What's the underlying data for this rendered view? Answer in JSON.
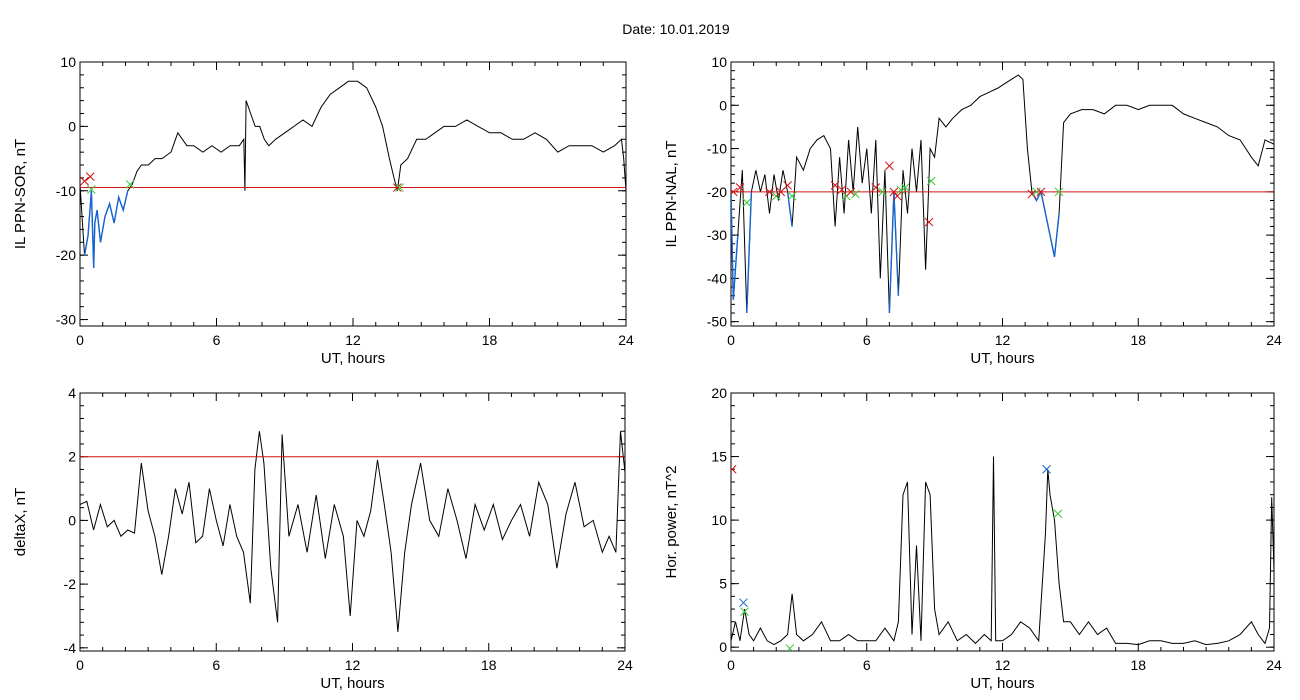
{
  "title": "Date:  10.01.2019",
  "colors": {
    "series": "#000000",
    "highlight": "#1464d2",
    "threshold": "#d21414",
    "marker_red": "#d21414",
    "marker_green": "#3cc83c",
    "marker_blue": "#1464d2"
  },
  "chart_data": [
    {
      "type": "line",
      "ylabel": "IL PPN-SOR, nT",
      "xlabel": "UT, hours",
      "xlim": [
        0,
        24
      ],
      "ylim": [
        -31,
        10
      ],
      "xticks": [
        0,
        6,
        12,
        18,
        24
      ],
      "yticks": [
        -30,
        -20,
        -10,
        0,
        10
      ],
      "grid": false,
      "threshold": -9.5,
      "series": [
        {
          "x": [
            0,
            0.2,
            0.35,
            0.5,
            0.6,
            0.65,
            0.75,
            0.9,
            1.1,
            1.3,
            1.5,
            1.7,
            1.9,
            2.1,
            2.3,
            2.5,
            2.7,
            3,
            3.3,
            3.6,
            4,
            4.3,
            4.7,
            5,
            5.4,
            5.8,
            6.2,
            6.6,
            7,
            7.2,
            7.25,
            7.3,
            7.5,
            7.7,
            7.9,
            8.1,
            8.3,
            8.6,
            9,
            9.4,
            9.8,
            10.2,
            10.6,
            11,
            11.4,
            11.8,
            12.2,
            12.6,
            13,
            13.3,
            13.6,
            13.8,
            13.95,
            14.1,
            14.4,
            14.8,
            15.2,
            15.6,
            16,
            16.5,
            17,
            17.5,
            18,
            18.5,
            19,
            19.5,
            20,
            20.5,
            21,
            21.5,
            22,
            22.5,
            23,
            23.5,
            23.8,
            23.9,
            24
          ],
          "y": [
            -9,
            -20,
            -17,
            -10,
            -22,
            -15,
            -13,
            -18,
            -14,
            -12,
            -15,
            -11,
            -13,
            -10,
            -9,
            -7,
            -6,
            -6,
            -5,
            -5,
            -4,
            -1,
            -3,
            -3,
            -4,
            -3,
            -4,
            -3,
            -3,
            -2,
            -10,
            4,
            2,
            0,
            0,
            -2,
            -3,
            -2,
            -1,
            0,
            1,
            0,
            3,
            5,
            6,
            7,
            7,
            6,
            3,
            0,
            -5,
            -8,
            -10,
            -6,
            -5,
            -2,
            -2,
            -1,
            0,
            0,
            1,
            0,
            -1,
            -1,
            -2,
            -2,
            -1,
            -2,
            -4,
            -3,
            -3,
            -3,
            -4,
            -3,
            -2,
            -5,
            -10
          ]
        }
      ],
      "markers": [
        {
          "x": 0.2,
          "y": -8.5,
          "color": "red"
        },
        {
          "x": 0.45,
          "y": -7.8,
          "color": "red"
        },
        {
          "x": 0.5,
          "y": -9.8,
          "color": "green"
        },
        {
          "x": 2.2,
          "y": -9,
          "color": "green"
        },
        {
          "x": 13.95,
          "y": -9.5,
          "color": "red"
        },
        {
          "x": 14.05,
          "y": -9.5,
          "color": "green"
        }
      ]
    },
    {
      "type": "line",
      "ylabel": "IL PPN-NAL, nT",
      "xlabel": "UT, hours",
      "xlim": [
        0,
        24
      ],
      "ylim": [
        -51,
        10
      ],
      "xticks": [
        0,
        6,
        12,
        18,
        24
      ],
      "yticks": [
        -50,
        -40,
        -30,
        -20,
        -10,
        0,
        10
      ],
      "grid": false,
      "threshold": -20,
      "series": [
        {
          "x": [
            0,
            0.1,
            0.3,
            0.5,
            0.7,
            0.9,
            1.1,
            1.3,
            1.5,
            1.7,
            1.9,
            2.1,
            2.3,
            2.5,
            2.7,
            2.9,
            3.2,
            3.5,
            3.8,
            4.1,
            4.4,
            4.6,
            4.8,
            5,
            5.2,
            5.4,
            5.6,
            5.8,
            6,
            6.2,
            6.4,
            6.6,
            6.8,
            7,
            7.2,
            7.4,
            7.6,
            7.8,
            8,
            8.2,
            8.4,
            8.6,
            8.8,
            9,
            9.2,
            9.5,
            9.8,
            10.2,
            10.6,
            11,
            11.4,
            11.8,
            12.1,
            12.4,
            12.7,
            12.9,
            13.1,
            13.3,
            13.5,
            13.7,
            13.9,
            14.1,
            14.3,
            14.5,
            14.7,
            15,
            15.5,
            16,
            16.5,
            17,
            17.5,
            18,
            18.5,
            19,
            19.5,
            20,
            20.5,
            21,
            21.5,
            22,
            22.5,
            23,
            23.3,
            23.6,
            24
          ],
          "y": [
            -20,
            -45,
            -30,
            -15,
            -48,
            -20,
            -15,
            -20,
            -16,
            -25,
            -16,
            -22,
            -15,
            -20,
            -28,
            -12,
            -15,
            -10,
            -8,
            -7,
            -10,
            -28,
            -12,
            -25,
            -8,
            -20,
            -5,
            -18,
            -10,
            -25,
            -8,
            -40,
            -15,
            -48,
            -20,
            -44,
            -15,
            -25,
            -10,
            -20,
            -8,
            -38,
            -10,
            -12,
            -3,
            -5,
            -3,
            -1,
            0,
            2,
            3,
            4,
            5,
            6,
            7,
            6,
            -10,
            -20,
            -22,
            -20,
            -25,
            -30,
            -35,
            -25,
            -4,
            -2,
            -1,
            -1,
            -2,
            0,
            0,
            -1,
            0,
            0,
            0,
            -2,
            -3,
            -4,
            -5,
            -7,
            -8,
            -12,
            -14,
            -8,
            -9
          ]
        }
      ],
      "markers": [
        {
          "x": 0.1,
          "y": -20,
          "color": "red"
        },
        {
          "x": 0.4,
          "y": -19,
          "color": "red"
        },
        {
          "x": 0.7,
          "y": -22.5,
          "color": "green"
        },
        {
          "x": 1.7,
          "y": -20,
          "color": "red"
        },
        {
          "x": 2.0,
          "y": -21,
          "color": "green"
        },
        {
          "x": 2.2,
          "y": -20,
          "color": "red"
        },
        {
          "x": 2.5,
          "y": -18.5,
          "color": "red"
        },
        {
          "x": 2.7,
          "y": -21,
          "color": "green"
        },
        {
          "x": 4.6,
          "y": -18.5,
          "color": "red"
        },
        {
          "x": 4.9,
          "y": -19.5,
          "color": "red"
        },
        {
          "x": 5.1,
          "y": -21,
          "color": "green"
        },
        {
          "x": 5.3,
          "y": -20,
          "color": "red"
        },
        {
          "x": 5.5,
          "y": -20.5,
          "color": "green"
        },
        {
          "x": 6.4,
          "y": -19,
          "color": "red"
        },
        {
          "x": 6.7,
          "y": -20,
          "color": "green"
        },
        {
          "x": 7.0,
          "y": -14,
          "color": "red"
        },
        {
          "x": 7.2,
          "y": -20,
          "color": "red"
        },
        {
          "x": 7.35,
          "y": -21,
          "color": "red"
        },
        {
          "x": 7.5,
          "y": -19.5,
          "color": "green"
        },
        {
          "x": 7.7,
          "y": -19,
          "color": "green"
        },
        {
          "x": 8.75,
          "y": -27,
          "color": "red"
        },
        {
          "x": 8.85,
          "y": -17.5,
          "color": "green"
        },
        {
          "x": 13.3,
          "y": -20.5,
          "color": "red"
        },
        {
          "x": 13.5,
          "y": -20,
          "color": "green"
        },
        {
          "x": 13.7,
          "y": -20,
          "color": "red"
        },
        {
          "x": 14.5,
          "y": -20,
          "color": "green"
        }
      ]
    },
    {
      "type": "line",
      "ylabel": "deltaX, nT",
      "xlabel": "UT, hours",
      "xlim": [
        0,
        24
      ],
      "ylim": [
        -4.1,
        4
      ],
      "xticks": [
        0,
        6,
        12,
        18,
        24
      ],
      "yticks": [
        -4,
        -2,
        0,
        2,
        4
      ],
      "grid": false,
      "threshold": 2,
      "series": [
        {
          "x": [
            0,
            0.3,
            0.6,
            0.9,
            1.2,
            1.5,
            1.8,
            2.1,
            2.4,
            2.7,
            3,
            3.3,
            3.6,
            3.9,
            4.2,
            4.5,
            4.8,
            5.1,
            5.4,
            5.7,
            6,
            6.3,
            6.6,
            6.9,
            7.2,
            7.5,
            7.7,
            7.9,
            8.1,
            8.4,
            8.7,
            8.9,
            9.2,
            9.6,
            10,
            10.4,
            10.8,
            11.2,
            11.6,
            11.9,
            12.2,
            12.5,
            12.8,
            13.1,
            13.4,
            13.7,
            14,
            14.3,
            14.6,
            15,
            15.4,
            15.8,
            16.2,
            16.6,
            17,
            17.4,
            17.8,
            18.2,
            18.6,
            19,
            19.4,
            19.8,
            20.2,
            20.6,
            21,
            21.4,
            21.8,
            22.2,
            22.6,
            23,
            23.3,
            23.6,
            23.8,
            24
          ],
          "y": [
            0.5,
            0.6,
            -0.3,
            0.5,
            -0.2,
            0,
            -0.5,
            -0.3,
            -0.4,
            1.8,
            0.3,
            -0.5,
            -1.7,
            -0.5,
            1,
            0.2,
            1.2,
            -0.7,
            -0.5,
            1,
            0,
            -0.8,
            0.5,
            -0.5,
            -1,
            -2.6,
            1.6,
            2.8,
            1.8,
            -1.5,
            -3.2,
            2.7,
            -0.5,
            0.5,
            -1,
            0.8,
            -1.2,
            0.5,
            -0.5,
            -3,
            0,
            -0.5,
            0.3,
            1.9,
            0.5,
            -1,
            -3.5,
            -1,
            0.5,
            1.8,
            0,
            -0.5,
            1,
            0,
            -1.2,
            0.5,
            -0.3,
            0.5,
            -0.6,
            0,
            0.5,
            -0.5,
            1.2,
            0.5,
            -1.5,
            0.2,
            1.2,
            -0.2,
            0,
            -1,
            -0.5,
            -1,
            2.8,
            1.5
          ]
        }
      ],
      "markers": []
    },
    {
      "type": "line",
      "ylabel": "Hor. power, nT^2",
      "xlabel": "UT, hours",
      "xlim": [
        0,
        24
      ],
      "ylim": [
        -0.3,
        20
      ],
      "xticks": [
        0,
        6,
        12,
        18,
        24
      ],
      "yticks": [
        0,
        5,
        10,
        15,
        20
      ],
      "grid": false,
      "series": [
        {
          "x": [
            0,
            0.2,
            0.4,
            0.6,
            0.8,
            1,
            1.3,
            1.6,
            1.9,
            2.2,
            2.5,
            2.7,
            2.9,
            3.2,
            3.6,
            4,
            4.4,
            4.8,
            5.2,
            5.6,
            6,
            6.4,
            6.8,
            7.2,
            7.4,
            7.6,
            7.8,
            8,
            8.2,
            8.4,
            8.6,
            8.8,
            9,
            9.2,
            9.6,
            10,
            10.4,
            10.8,
            11.2,
            11.5,
            11.6,
            11.7,
            12,
            12.4,
            12.8,
            13.2,
            13.6,
            13.9,
            14,
            14.1,
            14.3,
            14.5,
            14.7,
            15,
            15.4,
            15.8,
            16.2,
            16.6,
            17,
            17.5,
            18,
            18.5,
            19,
            19.5,
            20,
            20.5,
            21,
            21.5,
            22,
            22.5,
            23,
            23.3,
            23.6,
            23.8,
            23.9,
            24
          ],
          "y": [
            0.5,
            2,
            0.5,
            3,
            1,
            0.5,
            1.5,
            0.5,
            0.2,
            0.5,
            1,
            4.2,
            1,
            0.5,
            1,
            2,
            0.5,
            0.5,
            1,
            0.5,
            0.5,
            0.5,
            1.5,
            0.5,
            2,
            12,
            13,
            1,
            8,
            0.5,
            13,
            12,
            3,
            1,
            2,
            0.5,
            1,
            0.3,
            1,
            0.5,
            15,
            0.5,
            0.5,
            1,
            2,
            1.5,
            0.5,
            9,
            14,
            12,
            10,
            5,
            2,
            2,
            1,
            2,
            1,
            1.5,
            0.3,
            0.3,
            0.2,
            0.5,
            0.5,
            0.3,
            0.3,
            0.5,
            0.2,
            0.3,
            0.5,
            1,
            2,
            1,
            0.3,
            1.5,
            11.8,
            6
          ]
        }
      ],
      "markers": [
        {
          "x": 0.05,
          "y": 14,
          "color": "red"
        },
        {
          "x": 0.55,
          "y": 3.5,
          "color": "blue"
        },
        {
          "x": 0.6,
          "y": 2.8,
          "color": "green"
        },
        {
          "x": 2.6,
          "y": -0.1,
          "color": "green"
        },
        {
          "x": 13.95,
          "y": 14,
          "color": "blue"
        },
        {
          "x": 14.45,
          "y": 10.5,
          "color": "green"
        }
      ]
    }
  ]
}
